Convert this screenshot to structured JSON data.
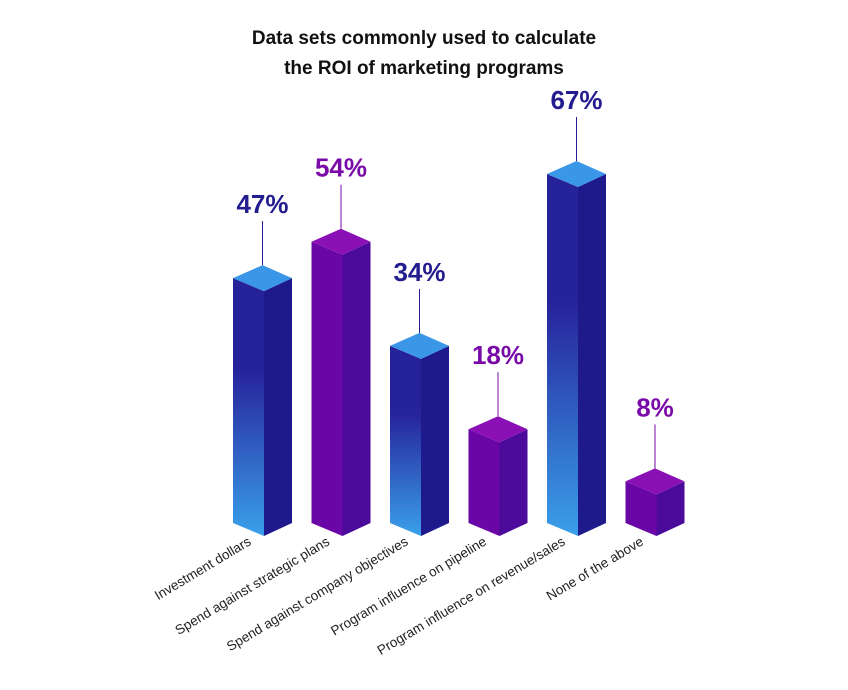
{
  "chart_data": {
    "type": "bar",
    "title_lines": [
      "Data sets commonly used to calculate",
      "the ROI of marketing programs"
    ],
    "categories": [
      "Investment dollars",
      "Spend against strategic plans",
      "Spend against company objectives",
      "Program influence on pipeline",
      "Program influence on revenue/sales",
      "None of the above"
    ],
    "values": [
      47,
      54,
      34,
      18,
      67,
      8
    ],
    "value_labels": [
      "47%",
      "54%",
      "34%",
      "18%",
      "67%",
      "8%"
    ],
    "unit": "%",
    "ylim": [
      0,
      67
    ],
    "colors": [
      "blue",
      "purple",
      "blue",
      "purple",
      "blue",
      "purple"
    ],
    "palette": {
      "blue_top": "#3a96e6",
      "blue_front_top": "#26229a",
      "blue_front_bottom": "#3aa0ea",
      "blue_side": "#1f1a8c",
      "blue_label": "#231d8f",
      "purple_top": "#8a0fb5",
      "purple_front": "#6a06a5",
      "purple_side": "#4b0a99",
      "purple_label": "#7a0aa8"
    }
  }
}
